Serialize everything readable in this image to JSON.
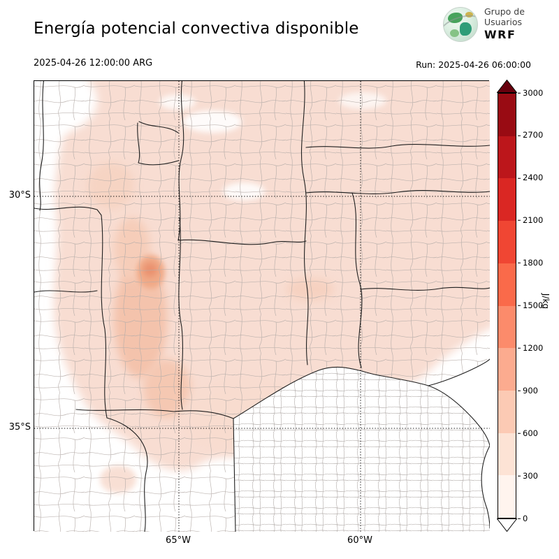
{
  "header": {
    "title": "Energía potencial convectiva disponible",
    "valid_time": "2025-04-26 12:00:00 ARG",
    "run_label": "Run: 2025-04-26 06:00:00",
    "logo": {
      "line1": "Grupo de",
      "line2": "Usuarios",
      "line3": "WRF"
    }
  },
  "map": {
    "lat_labels": [
      "30°S",
      "35°S"
    ],
    "lon_labels": [
      "65°W",
      "60°W"
    ]
  },
  "colorbar": {
    "unit": "J/kg",
    "tick_values": [
      0,
      300,
      600,
      900,
      1200,
      1500,
      1800,
      2100,
      2400,
      2700,
      3000
    ],
    "segment_colors_bottom_to_top": [
      "#fff4ee",
      "#fde3d5",
      "#fccab4",
      "#fcab8f",
      "#fc8b6b",
      "#fa6a4a",
      "#f04633",
      "#da2723",
      "#bc161b",
      "#990b13"
    ],
    "over_color": "#67000d",
    "under_color": "#ffffff",
    "field_light": "#f8ddd2",
    "field_medium": "#f4c3ac",
    "field_strong": "#ea9270"
  }
}
